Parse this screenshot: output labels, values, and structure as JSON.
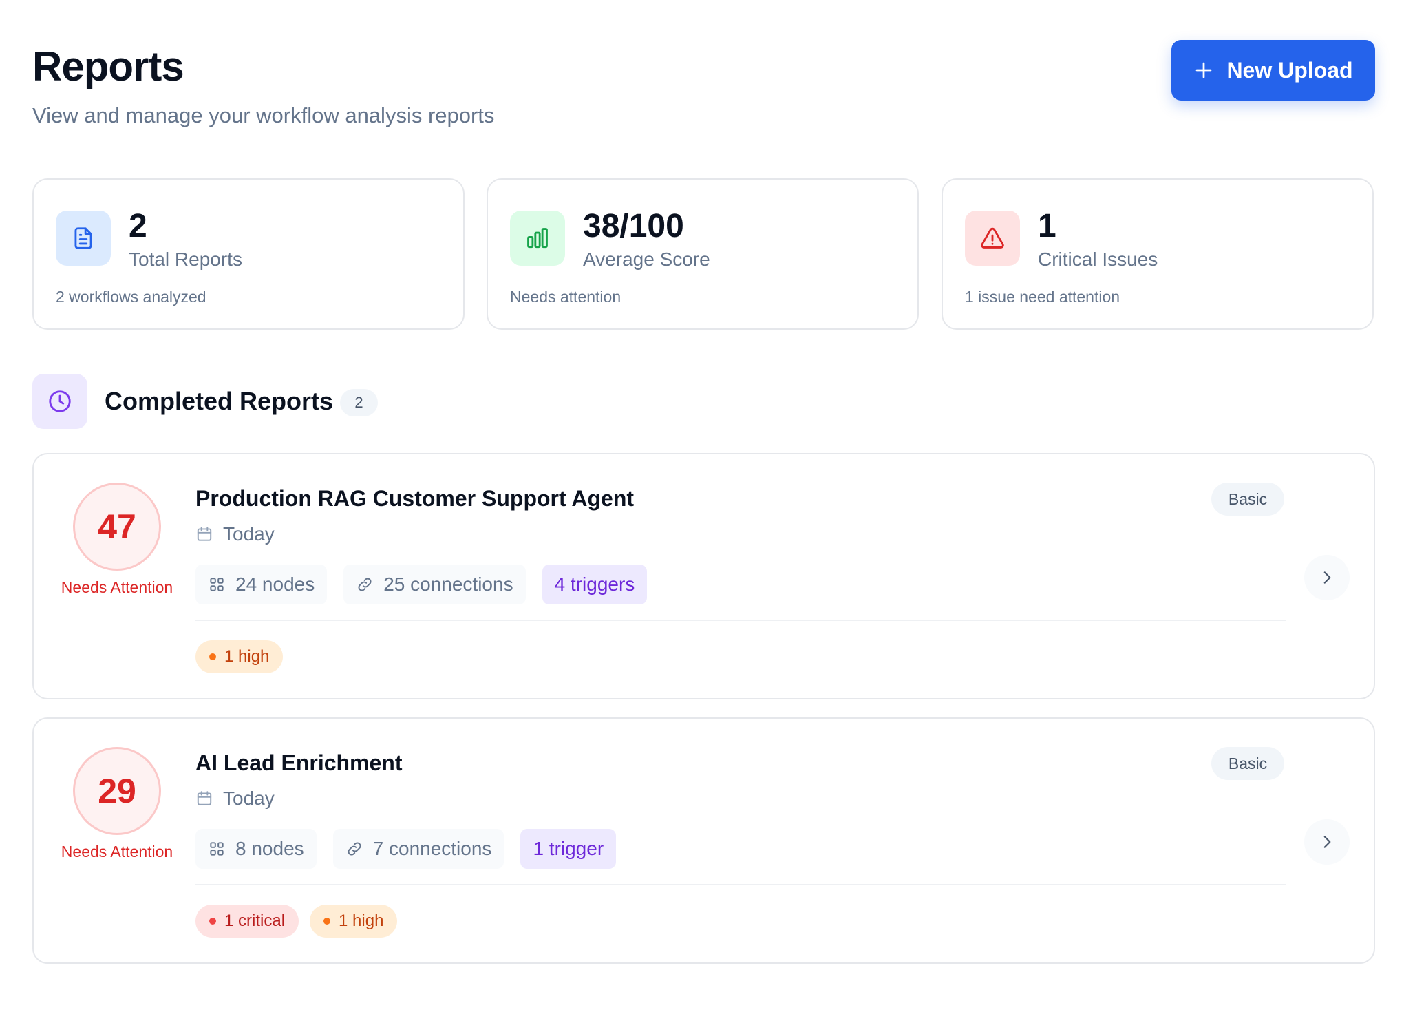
{
  "header": {
    "title": "Reports",
    "subtitle": "View and manage your workflow analysis reports",
    "upload_label": "New Upload"
  },
  "stats": [
    {
      "value": "2",
      "label": "Total Reports",
      "note": "2 workflows analyzed",
      "icon": "document-icon",
      "color": "#2563eb",
      "bg": "#dbeafe"
    },
    {
      "value": "38/100",
      "label": "Average Score",
      "note": "Needs attention",
      "icon": "bar-chart-icon",
      "color": "#16a34a",
      "bg": "#dcfce7"
    },
    {
      "value": "1",
      "label": "Critical Issues",
      "note": "1 issue need attention",
      "icon": "warning-icon",
      "color": "#dc2626",
      "bg": "#fee2e2"
    }
  ],
  "section": {
    "title": "Completed Reports",
    "count": "2"
  },
  "reports": [
    {
      "score": "47",
      "status": "Needs Attention",
      "name": "Production RAG Customer Support Agent",
      "date": "Today",
      "nodes": "24 nodes",
      "connections": "25 connections",
      "triggers": "4 triggers",
      "tier": "Basic",
      "severities": [
        {
          "level": "high",
          "label": "1 high"
        }
      ]
    },
    {
      "score": "29",
      "status": "Needs Attention",
      "name": "AI Lead Enrichment",
      "date": "Today",
      "nodes": "8 nodes",
      "connections": "7 connections",
      "triggers": "1 trigger",
      "tier": "Basic",
      "severities": [
        {
          "level": "critical",
          "label": "1 critical"
        },
        {
          "level": "high",
          "label": "1 high"
        }
      ]
    }
  ]
}
